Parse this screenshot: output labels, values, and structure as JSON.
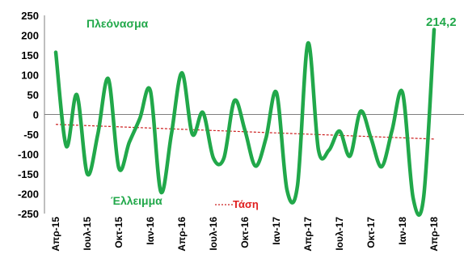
{
  "chart_data": {
    "type": "line",
    "title": "",
    "xlabel": "",
    "ylabel": "",
    "ylim": [
      -250,
      250
    ],
    "yticks": [
      -250,
      -200,
      -150,
      -100,
      -50,
      0,
      50,
      100,
      150,
      200,
      250
    ],
    "x_labels": [
      "Απρ-15",
      "Ιουλ-15",
      "Οκτ-15",
      "Ιαν-16",
      "Απρ-16",
      "Ιουλ-16",
      "Οκτ-16",
      "Ιαν-17",
      "Απρ-17",
      "Ιουλ-17",
      "Οκτ-17",
      "Ιαν-18",
      "Απρ-18"
    ],
    "series": [
      {
        "color": "#21a84a",
        "values": [
          157,
          -80,
          50,
          -150,
          -50,
          90,
          -135,
          -70,
          -10,
          60,
          -195,
          -50,
          105,
          -50,
          5,
          -110,
          -110,
          35,
          -40,
          -130,
          -60,
          55,
          -190,
          -180,
          180,
          -90,
          -90,
          -42,
          -105,
          8,
          -60,
          -132,
          -40,
          55,
          -210,
          -210,
          214.2
        ]
      }
    ],
    "trend": {
      "color": "#cc2020",
      "start": -25,
      "end": -62
    },
    "annotations": {
      "surplus": "Πλεόνασμα",
      "deficit": "Έλλειμμα",
      "trend_label": "Τάση",
      "last_value": "214,2"
    },
    "grid": false
  }
}
